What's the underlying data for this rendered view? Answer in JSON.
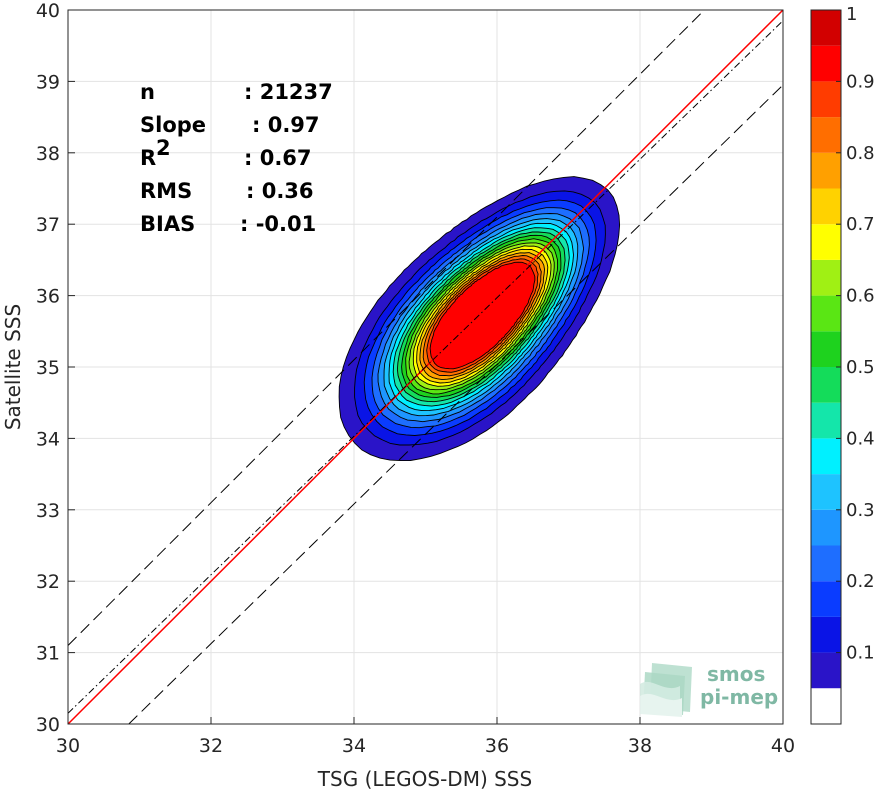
{
  "chart_data": {
    "type": "contour-scatter",
    "xlabel": "TSG (LEGOS-DM) SSS",
    "ylabel": "Satellite SSS",
    "xlim": [
      30,
      40
    ],
    "ylim": [
      30,
      40
    ],
    "xticks": [
      30,
      32,
      34,
      36,
      38,
      40
    ],
    "yticks": [
      30,
      31,
      32,
      33,
      34,
      35,
      36,
      37,
      38,
      39,
      40
    ],
    "grid": true,
    "stats": [
      {
        "key": "n",
        "sep": ": ",
        "value": "21237"
      },
      {
        "key": "Slope",
        "sep": ": ",
        "value": "0.97"
      },
      {
        "key": "R",
        "sup": "2",
        "sep": ": ",
        "value": "0.67"
      },
      {
        "key": "RMS",
        "sep": ": ",
        "value": "0.36"
      },
      {
        "key": "BIAS",
        "sep": ": ",
        "value": "-0.01"
      }
    ],
    "reference_lines": [
      {
        "name": "identity",
        "style": "solid",
        "color": "#ff0000",
        "points": [
          [
            30,
            30
          ],
          [
            40,
            40
          ]
        ]
      },
      {
        "name": "regression",
        "style": "dash-dot",
        "color": "#000000",
        "points": [
          [
            30,
            30.15
          ],
          [
            40,
            39.85
          ]
        ]
      },
      {
        "name": "upper-bound",
        "style": "dashed",
        "color": "#000000",
        "points": [
          [
            30,
            31.1
          ],
          [
            38.9,
            40
          ]
        ]
      },
      {
        "name": "lower-bound",
        "style": "dashed",
        "color": "#000000",
        "points": [
          [
            30.85,
            30
          ],
          [
            40,
            38.95
          ]
        ]
      }
    ],
    "density_contours": {
      "levels": [
        0.05,
        0.1,
        0.15,
        0.2,
        0.25,
        0.3,
        0.35,
        0.4,
        0.45,
        0.5,
        0.55,
        0.6,
        0.65,
        0.7,
        0.75,
        0.8,
        0.85,
        0.9,
        0.95
      ],
      "max_level_reached": 0.9,
      "primary_peak": {
        "x": 35.5,
        "y": 35.4
      },
      "secondary_peak": {
        "x": 36.2,
        "y": 36.15
      }
    },
    "colorbar": {
      "range": [
        0,
        1
      ],
      "ticks": [
        0.1,
        0.2,
        0.3,
        0.4,
        0.5,
        0.6,
        0.7,
        0.8,
        0.9,
        1
      ],
      "tick_labels": [
        "0.1",
        "0.2",
        "0.3",
        "0.4",
        "0.5",
        "0.6",
        "0.7",
        "0.8",
        "0.9",
        "1"
      ],
      "bands": [
        "#ffffff",
        "#5a0aaa",
        "#2a14c8",
        "#0a14e6",
        "#0a3cff",
        "#1e6eff",
        "#1e96ff",
        "#1ec3ff",
        "#00f0ff",
        "#14e6aa",
        "#14dc5a",
        "#1ed21e",
        "#5ae614",
        "#a0f014",
        "#ffff00",
        "#ffd200",
        "#ffa000",
        "#ff6e00",
        "#ff3c00",
        "#ff0000",
        "#d20000",
        "#960000"
      ]
    },
    "logo": {
      "line1": "smos",
      "line2": "pi-mep"
    }
  }
}
